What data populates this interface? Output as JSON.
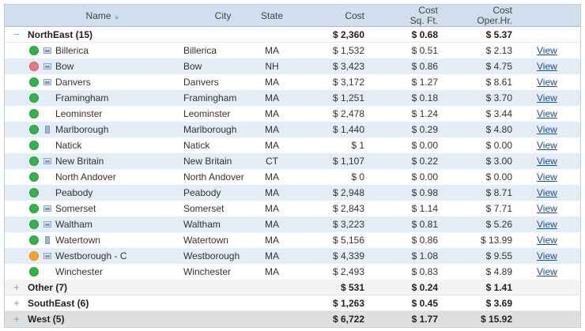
{
  "columns": {
    "name": "Name",
    "city": "City",
    "state": "State",
    "cost": "Cost",
    "cost_sqft_line1": "Cost",
    "cost_sqft_line2": "Sq. Ft.",
    "cost_oper_line1": "Cost",
    "cost_oper_line2": "Oper.Hr."
  },
  "sort_indicator": "▲",
  "icons": {
    "expanded": "−",
    "collapsed": "+"
  },
  "colors": {
    "header_bg": "#cfdfee",
    "row_alt_bg": "#e4ecf6",
    "status_green": "#33b24a",
    "status_red": "#e87b7b",
    "status_orange": "#f5a623",
    "link": "#1f4f86"
  },
  "groups": [
    {
      "label": "NorthEast (15)",
      "cost": "$ 2,360",
      "sqft": "$ 0.68",
      "oper": "$ 5.37",
      "expanded": true,
      "rows": [
        {
          "name": "Billerica",
          "city": "Billerica",
          "state": "MA",
          "cost": "$ 1,532",
          "sqft": "$ 0.51",
          "oper": "$ 2.13",
          "link": "View",
          "status": "green",
          "icon": "image-icon"
        },
        {
          "name": "Bow",
          "city": "Bow",
          "state": "NH",
          "cost": "$ 3,423",
          "sqft": "$ 0.86",
          "oper": "$ 4.75",
          "link": "View",
          "status": "red",
          "icon": "image-icon"
        },
        {
          "name": "Danvers",
          "city": "Danvers",
          "state": "MA",
          "cost": "$ 3,172",
          "sqft": "$ 1.27",
          "oper": "$ 8.61",
          "link": "View",
          "status": "green",
          "icon": "image-icon"
        },
        {
          "name": "Framingham",
          "city": "Framingham",
          "state": "MA",
          "cost": "$ 1,251",
          "sqft": "$ 0.18",
          "oper": "$ 3.70",
          "link": "View",
          "status": "green",
          "icon": ""
        },
        {
          "name": "Leominster",
          "city": "Leominster",
          "state": "MA",
          "cost": "$ 2,478",
          "sqft": "$ 1.24",
          "oper": "$ 3.44",
          "link": "View",
          "status": "green",
          "icon": ""
        },
        {
          "name": "Marlborough",
          "city": "Marlborough",
          "state": "MA",
          "cost": "$ 1,440",
          "sqft": "$ 0.29",
          "oper": "$ 4.80",
          "link": "View",
          "status": "green",
          "icon": "document-icon"
        },
        {
          "name": "Natick",
          "city": "Natick",
          "state": "MA",
          "cost": "$ 1",
          "sqft": "$ 0.00",
          "oper": "$ 0.00",
          "link": "View",
          "status": "green",
          "icon": ""
        },
        {
          "name": "New Britain",
          "city": "New Britain",
          "state": "CT",
          "cost": "$ 1,107",
          "sqft": "$ 0.22",
          "oper": "$ 3.00",
          "link": "View",
          "status": "green",
          "icon": "image-icon"
        },
        {
          "name": "North Andover",
          "city": "North Andover",
          "state": "MA",
          "cost": "$ 0",
          "sqft": "$ 0.00",
          "oper": "$ 0.00",
          "link": "View",
          "status": "green",
          "icon": ""
        },
        {
          "name": "Peabody",
          "city": "Peabody",
          "state": "MA",
          "cost": "$ 2,948",
          "sqft": "$ 0.98",
          "oper": "$ 8.71",
          "link": "View",
          "status": "green",
          "icon": ""
        },
        {
          "name": "Somerset",
          "city": "Somerset",
          "state": "MA",
          "cost": "$ 2,843",
          "sqft": "$ 1.14",
          "oper": "$ 7.71",
          "link": "View",
          "status": "green",
          "icon": "image-icon"
        },
        {
          "name": "Waltham",
          "city": "Waltham",
          "state": "MA",
          "cost": "$ 3,223",
          "sqft": "$ 0.81",
          "oper": "$ 5.26",
          "link": "View",
          "status": "green",
          "icon": "image-icon"
        },
        {
          "name": "Watertown",
          "city": "Watertown",
          "state": "MA",
          "cost": "$ 5,156",
          "sqft": "$ 0.86",
          "oper": "$ 13.99",
          "link": "View",
          "status": "green",
          "icon": "document-icon"
        },
        {
          "name": "Westborough - C",
          "city": "Westborough",
          "state": "MA",
          "cost": "$ 4,339",
          "sqft": "$ 1.08",
          "oper": "$ 9.55",
          "link": "View",
          "status": "orange",
          "icon": "image-icon"
        },
        {
          "name": "Winchester",
          "city": "Winchester",
          "state": "MA",
          "cost": "$ 2,493",
          "sqft": "$ 0.83",
          "oper": "$ 4.89",
          "link": "View",
          "status": "green",
          "icon": ""
        }
      ]
    },
    {
      "label": "Other (7)",
      "cost": "$ 531",
      "sqft": "$ 0.24",
      "oper": "$ 1.41",
      "expanded": false,
      "rows": []
    },
    {
      "label": "SouthEast (6)",
      "cost": "$ 1,263",
      "sqft": "$ 0.45",
      "oper": "$ 3.69",
      "expanded": false,
      "rows": []
    },
    {
      "label": "West (5)",
      "cost": "$ 6,722",
      "sqft": "$ 1.77",
      "oper": "$ 15.92",
      "expanded": false,
      "rows": []
    }
  ]
}
